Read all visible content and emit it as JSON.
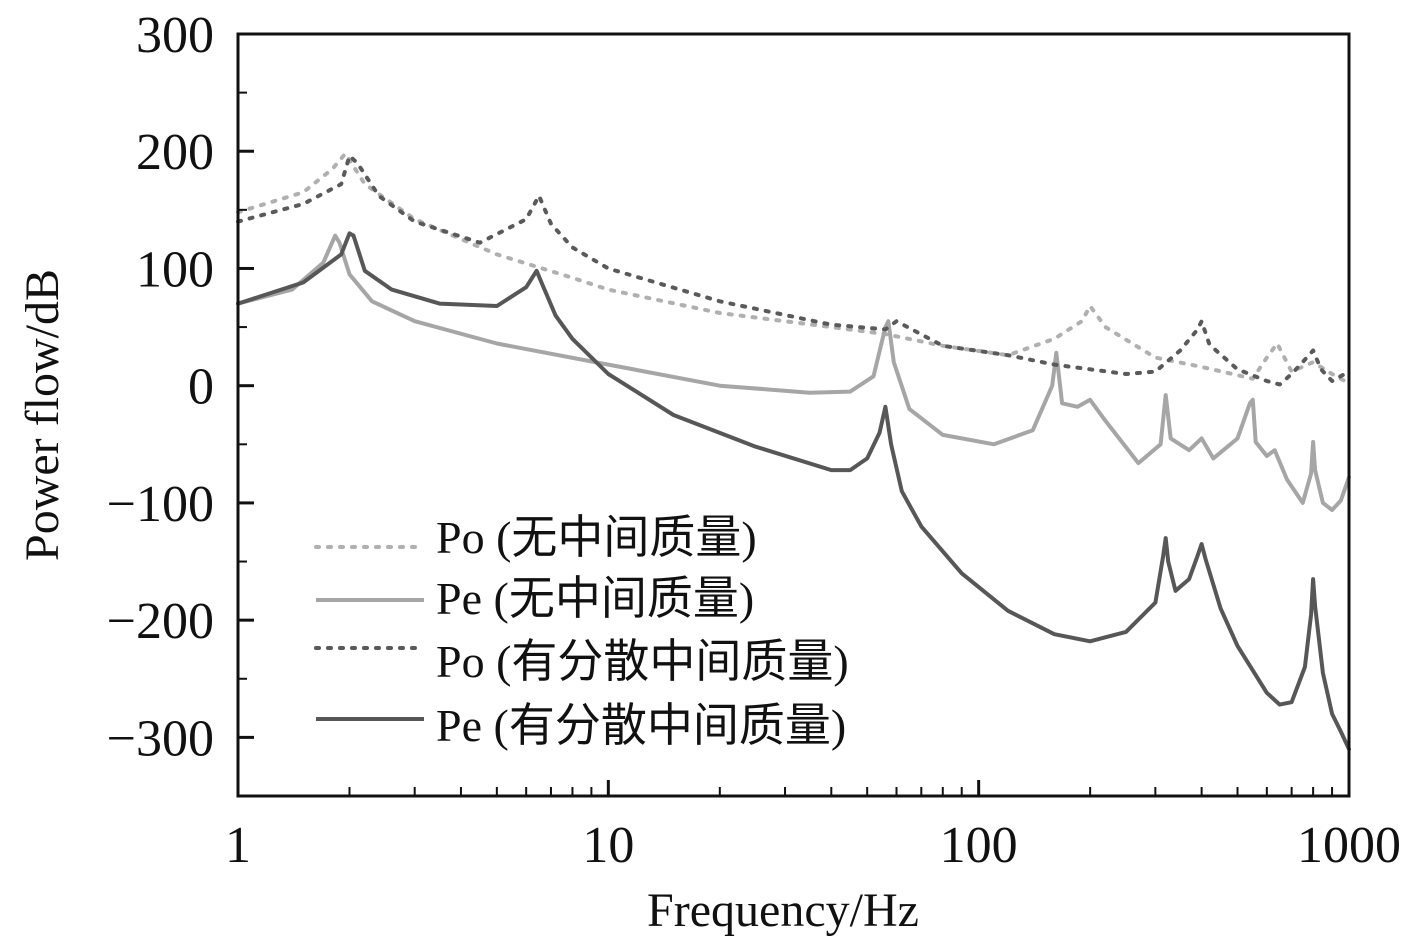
{
  "chart_data": {
    "type": "line",
    "title": "",
    "xlabel": "Frequency/Hz",
    "ylabel": "Power flow/dB",
    "xscale": "log",
    "xlim": [
      1,
      1000
    ],
    "ylim": [
      -350,
      300
    ],
    "xticks": [
      1,
      10,
      100,
      1000
    ],
    "xtick_labels": [
      "1",
      "10",
      "100",
      "1000"
    ],
    "yticks": [
      300,
      200,
      100,
      0,
      -100,
      -200,
      -300
    ],
    "ytick_labels": [
      "300",
      "200",
      "100",
      "0",
      "−100",
      "−200",
      "−300"
    ],
    "grid": false,
    "legend_position": "bottom-left",
    "series": [
      {
        "name": "Po (无中间质量)",
        "style": "dotted",
        "color": "#b0b0b0",
        "x": [
          1,
          1.5,
          1.8,
          1.95,
          2.2,
          3,
          5,
          8,
          10,
          20,
          40,
          56,
          80,
          120,
          160,
          190,
          200,
          220,
          300,
          400,
          550,
          600,
          640,
          700,
          800,
          900,
          1000
        ],
        "y": [
          148,
          165,
          185,
          198,
          172,
          142,
          112,
          92,
          82,
          62,
          50,
          44,
          34,
          26,
          40,
          55,
          68,
          50,
          24,
          16,
          6,
          24,
          36,
          12,
          20,
          10,
          2
        ]
      },
      {
        "name": "Pe (无中间质量)",
        "style": "solid",
        "color": "#a6a6a6",
        "x": [
          1,
          1.4,
          1.7,
          1.83,
          1.88,
          2.0,
          2.3,
          3,
          5,
          10,
          20,
          35,
          45,
          52,
          56,
          57,
          59,
          65,
          80,
          110,
          140,
          158,
          162,
          168,
          185,
          200,
          220,
          270,
          310,
          320,
          330,
          370,
          400,
          430,
          500,
          540,
          550,
          560,
          600,
          630,
          680,
          750,
          790,
          800,
          810,
          850,
          900,
          950,
          1000
        ],
        "y": [
          70,
          82,
          105,
          128,
          122,
          95,
          72,
          55,
          36,
          18,
          0,
          -6,
          -5,
          8,
          50,
          55,
          20,
          -20,
          -42,
          -50,
          -38,
          0,
          28,
          -15,
          -18,
          -12,
          -30,
          -66,
          -50,
          -8,
          -45,
          -55,
          -45,
          -62,
          -45,
          -15,
          -12,
          -48,
          -60,
          -55,
          -80,
          -100,
          -75,
          -48,
          -72,
          -100,
          -106,
          -98,
          -78
        ]
      },
      {
        "name": "Po (有分散中间质量)",
        "style": "dotted",
        "color": "#5a5a5a",
        "x": [
          1,
          1.5,
          1.9,
          2.0,
          2.1,
          2.4,
          3,
          4.5,
          6,
          6.5,
          7,
          8,
          10,
          20,
          40,
          56,
          60,
          80,
          120,
          160,
          200,
          250,
          300,
          350,
          390,
          400,
          420,
          500,
          600,
          650,
          700,
          780,
          800,
          840,
          900,
          1000
        ],
        "y": [
          140,
          155,
          172,
          196,
          190,
          162,
          140,
          122,
          142,
          162,
          138,
          118,
          100,
          72,
          52,
          48,
          55,
          34,
          26,
          18,
          14,
          10,
          12,
          30,
          48,
          55,
          35,
          14,
          4,
          1,
          10,
          26,
          30,
          14,
          4,
          12
        ]
      },
      {
        "name": "Pe (有分散中间质量)",
        "style": "solid",
        "color": "#575757",
        "x": [
          1,
          1.5,
          1.9,
          2.0,
          2.05,
          2.2,
          2.6,
          3.5,
          5,
          6.0,
          6.4,
          6.6,
          7.2,
          8,
          10,
          15,
          25,
          40,
          45,
          50,
          54,
          56,
          58,
          62,
          70,
          90,
          120,
          160,
          200,
          250,
          300,
          315,
          320,
          325,
          340,
          370,
          390,
          400,
          410,
          450,
          500,
          600,
          650,
          700,
          760,
          790,
          800,
          810,
          850,
          900,
          950,
          1000
        ],
        "y": [
          70,
          88,
          112,
          130,
          128,
          98,
          82,
          70,
          68,
          84,
          98,
          88,
          60,
          40,
          10,
          -25,
          -52,
          -72,
          -72,
          -62,
          -40,
          -18,
          -50,
          -90,
          -120,
          -160,
          -192,
          -212,
          -218,
          -210,
          -185,
          -145,
          -130,
          -150,
          -175,
          -165,
          -145,
          -135,
          -148,
          -190,
          -222,
          -262,
          -272,
          -270,
          -240,
          -195,
          -165,
          -188,
          -245,
          -280,
          -295,
          -310
        ]
      }
    ]
  }
}
